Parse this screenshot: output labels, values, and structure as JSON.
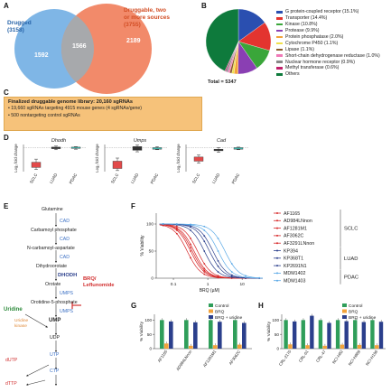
{
  "panels": {
    "A": {
      "label": "A",
      "drugged_title": "Drugged",
      "drugged_count": "(3158)",
      "druggable_title": "Druggable, two or more sources",
      "druggable_title_l1": "Druggable, two",
      "druggable_title_l2": "or more sources",
      "druggable_count": "(3755)",
      "left_only": "1592",
      "overlap": "1566",
      "right_only": "2189",
      "colors": {
        "left": "#7fb6e6",
        "right": "#f28a6a",
        "overlap": "#a7a9ac"
      }
    },
    "B": {
      "label": "B",
      "total": "Total = 5347",
      "legend": [
        {
          "label": "G protein-coupled receptor (15.1%)",
          "color": "#2a4fb0"
        },
        {
          "label": "Transporter (14.4%)",
          "color": "#e3342f"
        },
        {
          "label": "Kinase (10.8%)",
          "color": "#3aa63a"
        },
        {
          "label": "Protease (9.9%)",
          "color": "#8a3fb3"
        },
        {
          "label": "Protein phosphatase (2.0%)",
          "color": "#f2a33a"
        },
        {
          "label": "Cytochrome P450 (1.1%)",
          "color": "#f1e04a"
        },
        {
          "label": "Lipase (1.1%)",
          "color": "#8a5a2b"
        },
        {
          "label": "Short-chain dehydrogenase reductase (1.0%)",
          "color": "#f07ab8"
        },
        {
          "label": "Nuclear hormone receptor (0.9%)",
          "color": "#888888"
        },
        {
          "label": "Methyl transferase (0.6%)",
          "color": "#c21f6a"
        },
        {
          "label": "Others",
          "color": "#0e7a3c"
        }
      ]
    },
    "C": {
      "label": "C",
      "title": "Finalized druggable genome library: 20,160 sgRNAs",
      "line1": "• 19,660 sgRNAs targeting 4915 mouse genes (4 sgRNAs/gene)",
      "line2": "• 500 nontargeting control sgRNAs"
    },
    "D": {
      "label": "D",
      "genes": [
        "Dhodh",
        "Umps",
        "Cad"
      ],
      "ylabel": "Log₂ fold change",
      "categories": [
        "SCLC",
        "LUAD",
        "PDAC"
      ]
    },
    "E": {
      "label": "E",
      "nodes": {
        "glutamine": "Glutamine",
        "cad1": "CAD",
        "carbamoyl": "Carbamoyl phosphate",
        "cad2": "CAD",
        "ncarb": "N-carbamoyl-aspartate",
        "cad3": "CAD",
        "dihydro": "Dihydroorotate",
        "dhodh": "DHODH",
        "orotate": "Orotate",
        "umps1": "UMPS",
        "o5p": "Orotidine-5-phosphate",
        "umps2": "UMPS",
        "uridine": "Uridine",
        "uridine_kinase": "Uridine kinase",
        "ump": "UMP",
        "udp": "UDP",
        "utp": "UTP",
        "ctp": "CTP",
        "dutp": "dUTP",
        "dttp": "dTTP",
        "brq": "BRQ/ Leflunomide",
        "brq_l1": "BRQ/",
        "brq_l2": "Leflunomide"
      }
    },
    "F": {
      "label": "F",
      "ylabel": "% Viability",
      "xlabel": "BRQ (µM)",
      "xticks": [
        "0.1",
        "1",
        "10"
      ],
      "yticks": [
        "0",
        "50",
        "100"
      ],
      "groups": [
        {
          "name": "SCLC",
          "lines": [
            "AF1165",
            "AD984LNnon",
            "AF1281M1",
            "AF3062C",
            "AF3291LNnon"
          ]
        },
        {
          "name": "LUAD",
          "lines": [
            "KP394",
            "KP368T1",
            "KP2691N1"
          ]
        },
        {
          "name": "PDAC",
          "lines": [
            "MDM1402",
            "MDM1403"
          ]
        }
      ]
    },
    "G": {
      "label": "G",
      "ylabel": "% Viability",
      "legend": [
        "Control",
        "BRQ",
        "BRQ + uridine"
      ],
      "yticks": [
        "0",
        "50",
        "100"
      ],
      "categories": [
        "AF1165",
        "AD984LNnon",
        "AF1281M1",
        "AF3062C"
      ]
    },
    "H": {
      "label": "H",
      "ylabel": "% Viability",
      "legend": [
        "Control",
        "BRQ",
        "BRQ + uridine"
      ],
      "yticks": [
        "0",
        "50",
        "100"
      ],
      "categories": [
        "CRL-2170",
        "CRL-01",
        "CRL-47",
        "NCI-H82",
        "NCI-H889",
        "NCI-H196"
      ]
    }
  },
  "chart_data": [
    {
      "type": "pie",
      "title": "",
      "categories": [
        "G protein-coupled receptor",
        "Transporter",
        "Kinase",
        "Protease",
        "Protein phosphatase",
        "Cytochrome P450",
        "Lipase",
        "Short-chain dehydrogenase reductase",
        "Nuclear hormone receptor",
        "Methyl transferase",
        "Others"
      ],
      "values": [
        15.1,
        14.4,
        10.8,
        9.9,
        2.0,
        1.1,
        1.1,
        1.0,
        0.9,
        0.6,
        43.1
      ]
    },
    {
      "type": "bar",
      "title": "",
      "categories": [
        "AF1165",
        "AD984LNnon",
        "AF1281M1",
        "AF3062C"
      ],
      "series": [
        {
          "name": "Control",
          "values": [
            100,
            100,
            100,
            100
          ]
        },
        {
          "name": "BRQ",
          "values": [
            18,
            10,
            12,
            14
          ]
        },
        {
          "name": "BRQ + uridine",
          "values": [
            95,
            92,
            94,
            90
          ]
        }
      ],
      "ylim": [
        0,
        120
      ]
    },
    {
      "type": "bar",
      "title": "",
      "categories": [
        "CRL-2170",
        "CRL-01",
        "CRL-47",
        "NCI-H82",
        "NCI-H889",
        "NCI-H196"
      ],
      "series": [
        {
          "name": "Control",
          "values": [
            100,
            100,
            100,
            100,
            100,
            100
          ]
        },
        {
          "name": "BRQ",
          "values": [
            15,
            12,
            10,
            14,
            13,
            12
          ]
        },
        {
          "name": "BRQ + uridine",
          "values": [
            95,
            115,
            90,
            96,
            93,
            94
          ]
        }
      ],
      "ylim": [
        0,
        120
      ]
    }
  ],
  "colors": {
    "control": "#2f9e5a",
    "brq": "#f2a33a",
    "uridine": "#2b3f8c",
    "sclc": "#d62728",
    "luad": "#2b3f8c",
    "pdac": "#5aa9e6",
    "box_red": "#e24a4a",
    "box_teal": "#3fb2a8"
  }
}
